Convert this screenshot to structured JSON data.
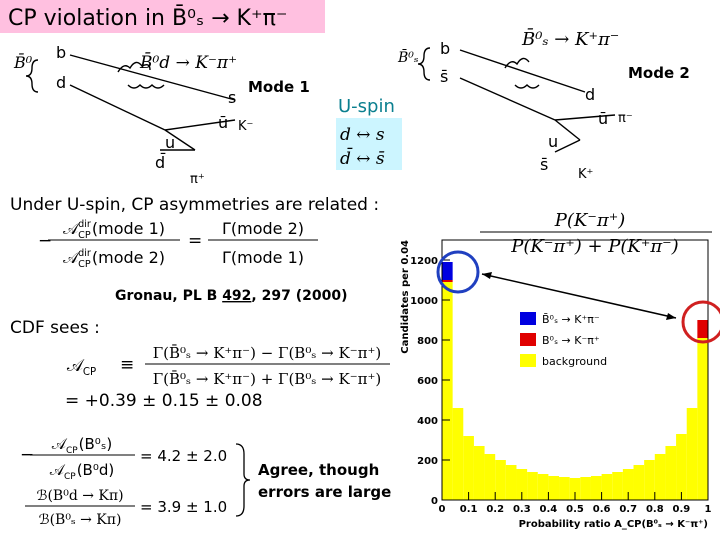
{
  "title": "CP violation in B̄⁰ₛ → K⁺π⁻",
  "mode1": {
    "label": "Mode 1",
    "decay": "B̄⁰d → K⁻π⁺",
    "meson": "B̄⁰",
    "quarks": [
      "b",
      "d",
      "s",
      "ū",
      "K⁻",
      "u",
      "d̄",
      "π⁺"
    ]
  },
  "mode2": {
    "label": "Mode 2",
    "decay": "B̄⁰ₛ → K⁺π⁻",
    "meson": "B̄⁰ₛ",
    "quarks": [
      "b",
      "s̄",
      "d",
      "ū",
      "π⁻",
      "u",
      "s̄",
      "K⁺"
    ]
  },
  "uspin": {
    "title": "U-spin",
    "lines": [
      "d ↔ s",
      "d̄ ↔ s̄"
    ]
  },
  "intro": "Under U-spin, CP asymmetries are related :",
  "relation": {
    "minus": "−",
    "num": {
      "symbol": "𝒜",
      "sup": "dir",
      "sub": "CP",
      "arg": "(mode 1)"
    },
    "den": {
      "symbol": "𝒜",
      "sup": "dir",
      "sub": "CP",
      "arg": "(mode 2)"
    },
    "equals": "=",
    "rnum": "Γ(mode 2)",
    "rden": "Γ(mode 1)"
  },
  "reference": {
    "before": "Gronau, PL B ",
    "volume": "492",
    "after": ", 297 (2000)"
  },
  "cdf": {
    "heading": "CDF sees :",
    "lhs": {
      "symbol": "𝒜",
      "sub": "CP"
    },
    "equals": "≡",
    "num": "Γ(B̄⁰ₛ → K⁺π⁻) − Γ(B⁰ₛ → K⁻π⁺)",
    "den": "Γ(B̄⁰ₛ → K⁺π⁻) + Γ(B⁰ₛ → K⁻π⁺)",
    "result": "= +0.39 ± 0.15 ± 0.08"
  },
  "ratios": [
    {
      "minus": "−",
      "num": {
        "symbol": "𝒜",
        "sub": "CP",
        "arg": "(B⁰ₛ)"
      },
      "den": {
        "symbol": "𝒜",
        "sub": "CP",
        "arg": "(B⁰d)"
      },
      "result": "= 4.2 ± 2.0"
    },
    {
      "num": "ℬ(B⁰d → Kπ)",
      "den": "ℬ(B⁰ₛ → Kπ)",
      "result": "= 3.9 ± 1.0"
    }
  ],
  "conclusion": [
    "Agree, though",
    "errors are large"
  ],
  "probability_formula": {
    "num": "P(K⁻π⁺)",
    "den": "P(K⁻π⁺) + P(K⁺π⁻)"
  },
  "chart_data": {
    "type": "histogram",
    "bins": [
      0,
      0.04,
      0.08,
      0.12,
      0.16,
      0.2,
      0.24,
      0.28,
      0.32,
      0.36,
      0.4,
      0.44,
      0.48,
      0.52,
      0.56,
      0.6,
      0.64,
      0.68,
      0.72,
      0.76,
      0.8,
      0.84,
      0.88,
      0.92,
      0.96,
      1
    ],
    "series": [
      {
        "name": "background",
        "color": "#ffff00",
        "values": [
          1090,
          460,
          320,
          270,
          230,
          200,
          175,
          155,
          140,
          130,
          120,
          115,
          110,
          115,
          120,
          130,
          140,
          155,
          175,
          200,
          230,
          270,
          330,
          460,
          810
        ]
      },
      {
        "name": "B⁰ₛ → K⁻π⁺",
        "color": "#e00000",
        "values": [
          10,
          0,
          0,
          0,
          0,
          0,
          0,
          0,
          0,
          0,
          0,
          0,
          0,
          0,
          0,
          0,
          0,
          0,
          0,
          0,
          0,
          0,
          0,
          0,
          90
        ]
      },
      {
        "name": "B̄⁰ₛ → K⁺π⁻",
        "color": "#0000e0",
        "values": [
          90,
          0,
          0,
          0,
          0,
          0,
          0,
          0,
          0,
          0,
          0,
          0,
          0,
          0,
          0,
          0,
          0,
          0,
          0,
          0,
          0,
          0,
          0,
          0,
          0
        ]
      }
    ],
    "xlabel": "Probability ratio  A_CP(B⁰ₛ → K⁻π⁺)",
    "ylabel": "Candidates per 0.04",
    "xlim": [
      0,
      1
    ],
    "xticks": [
      0,
      0.1,
      0.2,
      0.3,
      0.4,
      0.5,
      0.6,
      0.7,
      0.8,
      0.9,
      1
    ],
    "ylim": [
      0,
      1300
    ],
    "yticks": [
      0,
      200,
      400,
      600,
      800,
      1000,
      1200
    ],
    "legend": "upper-right",
    "stacked": true
  }
}
